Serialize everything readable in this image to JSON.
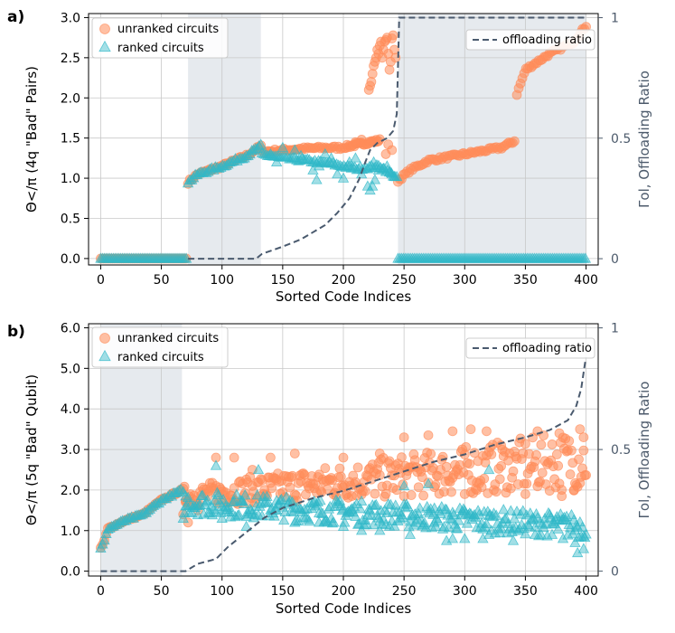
{
  "colors": {
    "unranked": "#ff8c5a",
    "ranked": "#30b8c8",
    "ratio": "#4a5a6e",
    "shade": "#e6eaee",
    "grid": "#c8c8c8",
    "right_axis": "#4c5a6b"
  },
  "chart_data": [
    {
      "panel_label": "a)",
      "type": "scatter",
      "xlabel": "Sorted Code Indices",
      "ylabel": "Θ</π (4q \"Bad\" Pairs)",
      "y2label": "Γol, Offloading Ratio",
      "xlim": [
        -10,
        410
      ],
      "ylim": [
        -0.08,
        3.05
      ],
      "y2lim": [
        -0.026,
        1.017
      ],
      "xticks": [
        0,
        50,
        100,
        150,
        200,
        250,
        300,
        350,
        400
      ],
      "yticks": [
        0.0,
        0.5,
        1.0,
        1.5,
        2.0,
        2.5,
        3.0
      ],
      "ytick_labels": [
        "0.0",
        "0.5",
        "1.0",
        "1.5",
        "2.0",
        "2.5",
        "3.0"
      ],
      "y2ticks": [
        0,
        0.5,
        1
      ],
      "y2tick_labels": [
        "0",
        "0.5",
        "1"
      ],
      "grid": true,
      "legend_left": [
        "unranked circuits",
        "ranked circuits"
      ],
      "legend_right": "offloading ratio",
      "legend_left_position": "top-left",
      "legend_right_position": "top-right",
      "shaded_regions": [
        [
          72,
          132
        ],
        [
          245,
          400
        ]
      ],
      "series": [
        {
          "name": "unranked circuits",
          "marker": "circle",
          "segments": [
            {
              "x0": 0,
              "x1": 71,
              "points": [
                [
                  0,
                  0
                ],
                [
                  71,
                  0
                ]
              ]
            },
            {
              "x0": 72,
              "x1": 132,
              "points": [
                [
                  72,
                  0.95
                ],
                [
                  80,
                  1.05
                ],
                [
                  100,
                  1.15
                ],
                [
                  120,
                  1.28
                ],
                [
                  132,
                  1.4
                ]
              ]
            },
            {
              "x0": 133,
              "x1": 200,
              "points": [
                [
                  133,
                  1.33
                ],
                [
                  150,
                  1.35
                ],
                [
                  170,
                  1.37
                ],
                [
                  185,
                  1.38
                ],
                [
                  200,
                  1.38
                ]
              ]
            },
            {
              "x0": 201,
              "x1": 230,
              "points": [
                [
                  201,
                  1.39
                ],
                [
                  212,
                  1.42
                ],
                [
                  222,
                  1.45
                ],
                [
                  230,
                  1.47
                ]
              ]
            },
            {
              "x0": 245,
              "x1": 342,
              "points": [
                [
                  245,
                  0.97
                ],
                [
                  255,
                  1.1
                ],
                [
                  270,
                  1.22
                ],
                [
                  300,
                  1.3
                ],
                [
                  330,
                  1.38
                ],
                [
                  342,
                  1.47
                ]
              ]
            },
            {
              "x0": 343,
              "x1": 400,
              "points": [
                [
                  343,
                  2.05
                ],
                [
                  350,
                  2.35
                ],
                [
                  370,
                  2.55
                ],
                [
                  390,
                  2.7
                ],
                [
                  400,
                  2.9
                ]
              ]
            }
          ],
          "extra_points": [
            [
              221,
              2.1
            ],
            [
              222,
              2.15
            ],
            [
              223,
              2.2
            ],
            [
              224,
              2.3
            ],
            [
              225,
              2.4
            ],
            [
              226,
              2.45
            ],
            [
              227,
              2.5
            ],
            [
              228,
              2.6
            ],
            [
              229,
              2.55
            ],
            [
              230,
              2.65
            ],
            [
              231,
              2.7
            ],
            [
              232,
              2.5
            ],
            [
              233,
              2.6
            ],
            [
              234,
              2.7
            ],
            [
              235,
              2.72
            ],
            [
              236,
              2.75
            ],
            [
              237,
              2.55
            ],
            [
              238,
              2.35
            ],
            [
              239,
              2.45
            ],
            [
              240,
              2.74
            ],
            [
              241,
              2.78
            ],
            [
              242,
              2.6
            ],
            [
              243,
              2.5
            ],
            [
              237,
              1.42
            ],
            [
              240,
              1.35
            ],
            [
              235,
              1.3
            ],
            [
              215,
              1.48
            ],
            [
              210,
              1.45
            ]
          ]
        },
        {
          "name": "ranked circuits",
          "marker": "triangle",
          "segments": [
            {
              "x0": 0,
              "x1": 71,
              "points": [
                [
                  0,
                  0
                ],
                [
                  71,
                  0
                ]
              ]
            },
            {
              "x0": 72,
              "x1": 132,
              "points": [
                [
                  72,
                  0.95
                ],
                [
                  80,
                  1.05
                ],
                [
                  100,
                  1.15
                ],
                [
                  120,
                  1.28
                ],
                [
                  132,
                  1.4
                ]
              ]
            },
            {
              "x0": 133,
              "x1": 245,
              "points": [
                [
                  133,
                  1.3
                ],
                [
                  150,
                  1.25
                ],
                [
                  170,
                  1.22
                ],
                [
                  190,
                  1.18
                ],
                [
                  210,
                  1.12
                ],
                [
                  230,
                  1.15
                ],
                [
                  245,
                  1.0
                ]
              ]
            },
            {
              "x0": 245,
              "x1": 400,
              "points": [
                [
                  245,
                  0
                ],
                [
                  400,
                  0
                ]
              ]
            }
          ],
          "extra_points": [
            [
              140,
              1.3
            ],
            [
              145,
              1.2
            ],
            [
              160,
              1.35
            ],
            [
              175,
              1.1
            ],
            [
              178,
              0.98
            ],
            [
              185,
              1.3
            ],
            [
              195,
              1.05
            ],
            [
              200,
              1.0
            ],
            [
              205,
              1.2
            ],
            [
              215,
              1.05
            ],
            [
              220,
              0.9
            ],
            [
              222,
              0.85
            ],
            [
              224,
              0.9
            ],
            [
              226,
              0.98
            ],
            [
              229,
              1.1
            ],
            [
              233,
              1.12
            ],
            [
              236,
              1.15
            ],
            [
              238,
              1.08
            ],
            [
              240,
              1.05
            ],
            [
              242,
              1.02
            ],
            [
              150,
              1.38
            ],
            [
              165,
              1.28
            ],
            [
              190,
              1.25
            ],
            [
              210,
              1.25
            ],
            [
              225,
              1.2
            ],
            [
              180,
              1.15
            ]
          ]
        },
        {
          "name": "offloading ratio",
          "type": "line",
          "axis": "right",
          "points": [
            [
              72,
              0
            ],
            [
              128,
              0
            ],
            [
              133,
              0.02
            ],
            [
              150,
              0.05
            ],
            [
              165,
              0.08
            ],
            [
              175,
              0.11
            ],
            [
              185,
              0.14
            ],
            [
              195,
              0.19
            ],
            [
              205,
              0.25
            ],
            [
              213,
              0.33
            ],
            [
              218,
              0.4
            ],
            [
              222,
              0.45
            ],
            [
              228,
              0.48
            ],
            [
              236,
              0.5
            ],
            [
              241,
              0.53
            ],
            [
              244,
              0.6
            ],
            [
              246,
              1
            ],
            [
              400,
              1
            ]
          ]
        }
      ]
    },
    {
      "panel_label": "b)",
      "type": "scatter",
      "xlabel": "Sorted Code Indices",
      "ylabel": "Θ</π (5q \"Bad\" Qubit)",
      "y2label": "Γol, Offloading Ratio",
      "xlim": [
        -10,
        410
      ],
      "ylim": [
        -0.12,
        6.1
      ],
      "y2lim": [
        -0.02,
        1.017
      ],
      "xticks": [
        0,
        50,
        100,
        150,
        200,
        250,
        300,
        350,
        400
      ],
      "yticks": [
        0.0,
        1.0,
        2.0,
        3.0,
        4.0,
        5.0,
        6.0
      ],
      "ytick_labels": [
        "0.0",
        "1.0",
        "2.0",
        "3.0",
        "4.0",
        "5.0",
        "6.0"
      ],
      "y2ticks": [
        0,
        0.5,
        1
      ],
      "y2tick_labels": [
        "0",
        "0.5",
        "1"
      ],
      "grid": true,
      "legend_left": [
        "unranked circuits",
        "ranked circuits"
      ],
      "legend_right": "offloading ratio",
      "legend_left_position": "top-left",
      "legend_right_position": "top-right",
      "shaded_regions": [
        [
          0,
          67
        ]
      ],
      "series": [
        {
          "name": "unranked circuits",
          "marker": "circle",
          "segments": [
            {
              "x0": 0,
              "x1": 67,
              "points": [
                [
                  0,
                  0.55
                ],
                [
                  3,
                  0.75
                ],
                [
                  6,
                  1.05
                ],
                [
                  20,
                  1.25
                ],
                [
                  35,
                  1.4
                ],
                [
                  50,
                  1.75
                ],
                [
                  67,
                  2.0
                ]
              ]
            }
          ],
          "band": {
            "x0": 68,
            "x1": 400,
            "lo_start": 1.6,
            "hi_start": 2.1,
            "lo_end": 2.0,
            "hi_end": 3.5
          },
          "extra_points": [
            [
              68,
              1.4
            ],
            [
              70,
              1.7
            ],
            [
              72,
              1.2
            ],
            [
              80,
              1.5
            ],
            [
              95,
              2.8
            ],
            [
              110,
              2.8
            ],
            [
              125,
              2.5
            ],
            [
              140,
              2.8
            ],
            [
              160,
              2.9
            ],
            [
              200,
              2.8
            ],
            [
              230,
              2.9
            ],
            [
              250,
              3.3
            ],
            [
              270,
              3.35
            ],
            [
              290,
              3.45
            ],
            [
              305,
              3.5
            ],
            [
              318,
              3.45
            ],
            [
              330,
              3.1
            ],
            [
              360,
              3.45
            ],
            [
              378,
              3.4
            ],
            [
              395,
              3.5
            ],
            [
              398,
              3.3
            ],
            [
              390,
              2.0
            ],
            [
              310,
              2.0
            ],
            [
              300,
              1.9
            ],
            [
              350,
              1.9
            ],
            [
              380,
              1.85
            ]
          ]
        },
        {
          "name": "ranked circuits",
          "marker": "triangle",
          "segments": [
            {
              "x0": 0,
              "x1": 67,
              "points": [
                [
                  0,
                  0.55
                ],
                [
                  3,
                  0.75
                ],
                [
                  6,
                  1.05
                ],
                [
                  20,
                  1.25
                ],
                [
                  35,
                  1.4
                ],
                [
                  50,
                  1.75
                ],
                [
                  67,
                  2.0
                ]
              ]
            }
          ],
          "band": {
            "x0": 68,
            "x1": 400,
            "lo_start": 1.4,
            "hi_start": 2.0,
            "lo_end": 0.8,
            "hi_end": 1.4
          },
          "extra_points": [
            [
              95,
              2.6
            ],
            [
              130,
              2.5
            ],
            [
              68,
              1.3
            ],
            [
              70,
              1.6
            ],
            [
              100,
              1.3
            ],
            [
              120,
              1.1
            ],
            [
              145,
              1.5
            ],
            [
              160,
              1.2
            ],
            [
              180,
              1.2
            ],
            [
              200,
              1.1
            ],
            [
              215,
              1.0
            ],
            [
              230,
              1.0
            ],
            [
              255,
              0.9
            ],
            [
              275,
              1.2
            ],
            [
              285,
              0.75
            ],
            [
              290,
              0.8
            ],
            [
              300,
              0.8
            ],
            [
              315,
              0.8
            ],
            [
              320,
              0.9
            ],
            [
              340,
              0.75
            ],
            [
              358,
              0.9
            ],
            [
              372,
              0.9
            ],
            [
              381,
              0.8
            ],
            [
              391,
              0.7
            ],
            [
              398,
              0.55
            ],
            [
              393,
              0.45
            ],
            [
              320,
              2.5
            ],
            [
              270,
              2.15
            ],
            [
              250,
              2.1
            ]
          ]
        },
        {
          "name": "offloading ratio",
          "type": "line",
          "axis": "right",
          "points": [
            [
              0,
              0
            ],
            [
              70,
              0
            ],
            [
              80,
              0.03
            ],
            [
              95,
              0.05
            ],
            [
              105,
              0.1
            ],
            [
              120,
              0.16
            ],
            [
              135,
              0.22
            ],
            [
              150,
              0.26
            ],
            [
              175,
              0.3
            ],
            [
              200,
              0.33
            ],
            [
              225,
              0.37
            ],
            [
              250,
              0.41
            ],
            [
              275,
              0.45
            ],
            [
              300,
              0.48
            ],
            [
              325,
              0.52
            ],
            [
              350,
              0.55
            ],
            [
              370,
              0.58
            ],
            [
              385,
              0.62
            ],
            [
              392,
              0.68
            ],
            [
              396,
              0.75
            ],
            [
              399,
              0.85
            ],
            [
              400,
              0.88
            ]
          ]
        }
      ]
    }
  ]
}
